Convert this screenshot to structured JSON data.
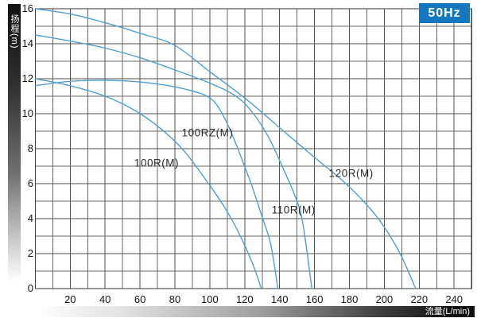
{
  "badge": {
    "label": "50Hz",
    "color": "#1577bd"
  },
  "axes": {
    "y": {
      "title": "扬程(m)",
      "ticks": [
        16,
        14,
        12,
        10,
        8,
        6,
        4,
        2,
        0
      ]
    },
    "x": {
      "title": "流量(L/min)",
      "ticks": [
        20,
        40,
        60,
        80,
        100,
        120,
        140,
        160,
        180,
        200,
        220,
        240
      ]
    }
  },
  "colors": {
    "curve": "#4f9fd0",
    "grid_major": "#4f4f4f",
    "grid_minor": "#6a6a6a",
    "border": "#3a3a3a",
    "badge_blue": "#1577bd",
    "tick_text": "#151515",
    "curve_label_text": "#2a2a2a"
  },
  "chart_data": {
    "type": "line",
    "title": "",
    "xlabel": "流量(L/min)",
    "ylabel": "扬程(m)",
    "xlim": [
      0,
      250
    ],
    "ylim": [
      0,
      16
    ],
    "x_tick_step": 20,
    "y_tick_step": 2,
    "grid": "on, minor lines every 10 L/min and every 1 m",
    "legend_position": "inline-labels",
    "series": [
      {
        "name": "120R(M)",
        "points": [
          [
            0,
            16
          ],
          [
            20,
            15.7
          ],
          [
            40,
            15.2
          ],
          [
            60,
            14.6
          ],
          [
            80,
            13.9
          ],
          [
            100,
            12.4
          ],
          [
            120,
            10.9
          ],
          [
            140,
            9.2
          ],
          [
            160,
            7.5
          ],
          [
            178,
            6.0
          ],
          [
            195,
            4.2
          ],
          [
            208,
            2.2
          ],
          [
            218,
            0
          ]
        ],
        "label_pos": [
          181,
          6.6
        ]
      },
      {
        "name": "110R(M)",
        "points": [
          [
            0,
            14.5
          ],
          [
            20,
            14.15
          ],
          [
            40,
            13.75
          ],
          [
            60,
            13.2
          ],
          [
            80,
            12.5
          ],
          [
            100,
            11.75
          ],
          [
            115,
            11.0
          ],
          [
            125,
            10.0
          ],
          [
            134,
            8.6
          ],
          [
            141,
            7.1
          ],
          [
            148,
            5.5
          ],
          [
            153,
            3.9
          ],
          [
            158.5,
            0
          ]
        ],
        "label_pos": [
          148,
          4.5
        ]
      },
      {
        "name": "100RZ(M)",
        "points": [
          [
            0,
            11.6
          ],
          [
            20,
            11.85
          ],
          [
            45,
            11.9
          ],
          [
            70,
            11.7
          ],
          [
            90,
            11.3
          ],
          [
            100,
            10.9
          ],
          [
            106,
            10.2
          ],
          [
            112,
            9.0
          ],
          [
            118,
            7.5
          ],
          [
            124,
            5.9
          ],
          [
            130,
            4.1
          ],
          [
            135,
            2.5
          ],
          [
            139,
            0
          ]
        ],
        "label_pos": [
          98.7,
          8.9
        ]
      },
      {
        "name": "100R(M)",
        "points": [
          [
            0,
            12.0
          ],
          [
            20,
            11.6
          ],
          [
            40,
            11.0
          ],
          [
            55,
            10.3
          ],
          [
            70,
            9.3
          ],
          [
            85,
            7.9
          ],
          [
            100,
            5.9
          ],
          [
            110,
            4.4
          ],
          [
            118,
            2.9
          ],
          [
            125,
            1.3
          ],
          [
            129.5,
            0
          ]
        ],
        "label_pos": [
          69.5,
          7.2
        ]
      }
    ]
  }
}
